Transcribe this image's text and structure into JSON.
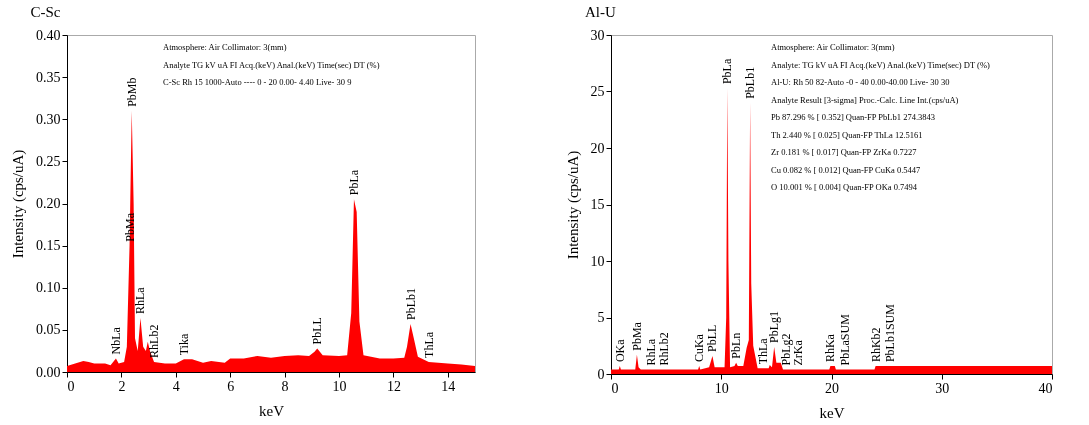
{
  "chart_data": [
    {
      "type": "area",
      "title": "C-Sc",
      "xlabel": "keV",
      "ylabel": "Intensity (cps/uA)",
      "xlim": [
        0,
        15
      ],
      "xticks": [
        0,
        2,
        4,
        6,
        8,
        10,
        12,
        14
      ],
      "ylim": [
        0,
        0.4
      ],
      "yticks": [
        {
          "value": 0,
          "label": "0.00"
        },
        {
          "value": 0.05,
          "label": "0.05"
        },
        {
          "value": 0.1,
          "label": "0.10"
        },
        {
          "value": 0.15,
          "label": "0.15"
        },
        {
          "value": 0.2,
          "label": "0.20"
        },
        {
          "value": 0.25,
          "label": "0.25"
        },
        {
          "value": 0.3,
          "label": "0.30"
        },
        {
          "value": 0.35,
          "label": "0.35"
        },
        {
          "value": 0.4,
          "label": "0.40"
        }
      ],
      "x": [
        0,
        0.3,
        0.6,
        0.8,
        1.0,
        1.4,
        1.6,
        1.8,
        1.9,
        2.1,
        2.2,
        2.3,
        2.38,
        2.45,
        2.5,
        2.6,
        2.7,
        2.8,
        2.9,
        2.97,
        3.05,
        3.2,
        3.6,
        4.0,
        4.3,
        4.6,
        5.0,
        5.3,
        5.8,
        6.0,
        6.5,
        7.0,
        7.5,
        8.0,
        8.5,
        8.9,
        9.1,
        9.2,
        9.4,
        10.0,
        10.3,
        10.45,
        10.55,
        10.65,
        10.75,
        10.9,
        11.5,
        12.0,
        12.4,
        12.5,
        12.63,
        12.75,
        12.9,
        13.3,
        14.0,
        14.5,
        15
      ],
      "series": [
        {
          "color": "#ff0000",
          "values": [
            0.007,
            0.01,
            0.013,
            0.012,
            0.01,
            0.01,
            0.008,
            0.016,
            0.01,
            0.012,
            0.03,
            0.15,
            0.31,
            0.2,
            0.04,
            0.025,
            0.064,
            0.03,
            0.025,
            0.036,
            0.025,
            0.012,
            0.01,
            0.01,
            0.015,
            0.015,
            0.011,
            0.013,
            0.011,
            0.016,
            0.016,
            0.019,
            0.017,
            0.019,
            0.02,
            0.019,
            0.024,
            0.028,
            0.02,
            0.019,
            0.02,
            0.07,
            0.205,
            0.19,
            0.06,
            0.02,
            0.016,
            0.016,
            0.017,
            0.03,
            0.057,
            0.04,
            0.018,
            0.012,
            0.01,
            0.009,
            0.007
          ]
        }
      ],
      "annotations": [
        {
          "text": "NbLa",
          "x": 1.8,
          "y": 0.016
        },
        {
          "text": "PbMa",
          "x": 2.3,
          "y": 0.15
        },
        {
          "text": "PbMb",
          "x": 2.38,
          "y": 0.31
        },
        {
          "text": "RhLa",
          "x": 2.7,
          "y": 0.064
        },
        {
          "text": "RhLb2",
          "x": 3.2,
          "y": 0.012
        },
        {
          "text": "Tika",
          "x": 4.3,
          "y": 0.015
        },
        {
          "text": "PbLL",
          "x": 9.2,
          "y": 0.028
        },
        {
          "text": "PbLa",
          "x": 10.55,
          "y": 0.205
        },
        {
          "text": "PbLb1",
          "x": 12.63,
          "y": 0.057
        },
        {
          "text": "ThLa",
          "x": 13.3,
          "y": 0.012
        },
        "Atmosphere: Air   Collimator: 3(mm)",
        "Analyte                TG kV   uA     FI   Acq.(keV) Anal.(keV)  Time(sec)  DT (%)",
        "C-Sc                   Rh 15 1000-Auto ----  0 - 20   0.00- 4.40  Live-  30     9"
      ]
    },
    {
      "type": "area",
      "title": "Al-U",
      "xlabel": "keV",
      "ylabel": "Intensity (cps/uA)",
      "xlim": [
        0,
        40
      ],
      "xticks": [
        0,
        10,
        20,
        30,
        40
      ],
      "ylim": [
        0,
        30
      ],
      "yticks": [
        0,
        5,
        10,
        15,
        20,
        25,
        30
      ],
      "x": [
        0,
        0.7,
        0.8,
        0.9,
        2.2,
        2.35,
        2.5,
        2.7,
        3.6,
        4.8,
        7.9,
        8.0,
        8.1,
        8.9,
        9.2,
        9.4,
        10.3,
        10.45,
        10.55,
        10.65,
        10.8,
        11.2,
        11.35,
        11.5,
        12.0,
        12.3,
        12.5,
        12.62,
        12.72,
        12.9,
        13.1,
        13.3,
        13.8,
        14.3,
        14.4,
        14.6,
        14.8,
        15.0,
        15.4,
        15.6,
        15.9,
        17.0,
        19.8,
        19.9,
        20.3,
        20.4,
        21.2,
        23.9,
        24.0,
        25.3,
        40
      ],
      "series": [
        {
          "color": "#ff0000",
          "values": [
            0.4,
            0.4,
            0.7,
            0.4,
            0.4,
            1.7,
            0.6,
            0.4,
            0.4,
            0.4,
            0.4,
            0.7,
            0.4,
            0.6,
            1.6,
            0.6,
            0.6,
            5,
            25.3,
            10,
            0.6,
            0.7,
            1.0,
            0.7,
            0.7,
            2.3,
            3,
            24,
            8,
            2.5,
            1.5,
            0.5,
            0.5,
            0.5,
            0.8,
            0.6,
            2.4,
            1.0,
            1.0,
            0.4,
            0.4,
            0.4,
            0.4,
            0.7,
            0.7,
            0.4,
            0.4,
            0.4,
            0.7,
            0.7,
            0.7
          ]
        }
      ],
      "annotations": [
        {
          "text": "OKa",
          "x": 0.8,
          "y": 0.7
        },
        {
          "text": "PbMa",
          "x": 2.35,
          "y": 1.7
        },
        {
          "text": "RhLa",
          "x": 3.6,
          "y": 0.4
        },
        {
          "text": "RhLb2",
          "x": 4.8,
          "y": 0.4
        },
        {
          "text": "CuKa",
          "x": 8.0,
          "y": 0.7
        },
        {
          "text": "PbLL",
          "x": 9.2,
          "y": 1.6
        },
        {
          "text": "PbLa",
          "x": 10.55,
          "y": 25.3
        },
        {
          "text": "PbLn",
          "x": 11.35,
          "y": 1.0
        },
        {
          "text": "PbLb1",
          "x": 12.62,
          "y": 24
        },
        {
          "text": "ThLa",
          "x": 13.8,
          "y": 0.5
        },
        {
          "text": "PbLg1",
          "x": 14.8,
          "y": 2.4
        },
        {
          "text": "PbLg2",
          "x": 15.9,
          "y": 0.4
        },
        {
          "text": "ZrKa",
          "x": 17.0,
          "y": 0.4
        },
        {
          "text": "RhKa",
          "x": 19.9,
          "y": 0.7
        },
        {
          "text": "PbLaSUM",
          "x": 21.2,
          "y": 0.4
        },
        {
          "text": "RhKb2",
          "x": 24.0,
          "y": 0.7
        },
        {
          "text": "PbLb1SUM",
          "x": 25.3,
          "y": 0.7
        },
        "Atmosphere: Air   Collimator: 3(mm)",
        "Analyte: TG kV   uA   FI   Acq.(keV) Anal.(keV)  Time(sec)  DT (%)",
        "Al-U: Rh 50   82-Auto -0 - 40   0.00-40.00  Live-  30    30",
        "Analyte              Result          [3-sigma] Proc.-Calc. Line   Int.(cps/uA)",
        "Pb              87.296 %    [ 0.352] Quan-FP   PbLb1    274.3843",
        "Th                2.440 %    [ 0.025] Quan-FP   ThLa      12.5161",
        "Zr                0.181 %    [ 0.017] Quan-FP   ZrKa       0.7227",
        "Cu                0.082 %    [ 0.012] Quan-FP   CuKa       0.5447",
        "O               10.001 %    [ 0.004] Quan-FP   OKa        0.7494"
      ]
    }
  ]
}
